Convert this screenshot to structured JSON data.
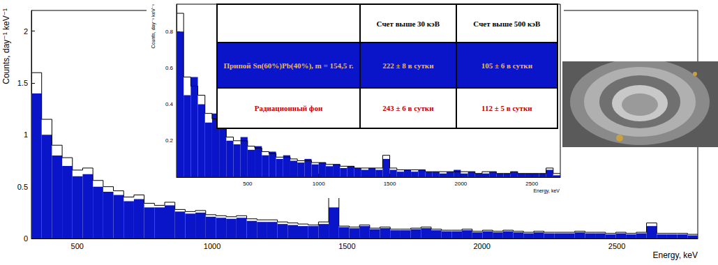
{
  "chart_data": [
    {
      "type": "histogram",
      "xlabel": "Energy, keV",
      "ylabel": "Counts, day⁻¹ keV⁻¹",
      "bins": [
        330,
        368,
        406,
        444,
        482,
        520,
        558,
        596,
        634,
        672,
        710,
        748,
        786,
        824,
        862,
        900,
        938,
        976,
        1014,
        1052,
        1090,
        1128,
        1166,
        1204,
        1242,
        1280,
        1318,
        1356,
        1394,
        1432,
        1470,
        1508,
        1546,
        1584,
        1622,
        1660,
        1698,
        1736,
        1774,
        1812,
        1850,
        1888,
        1926,
        1964,
        2002,
        2040,
        2078,
        2116,
        2154,
        2192,
        2230,
        2268,
        2306,
        2344,
        2382,
        2420,
        2458,
        2496,
        2534,
        2572,
        2610,
        2648,
        2686,
        2724,
        2762,
        2800
      ],
      "series": [
        {
          "name": "Припой Sn(60%)Pb(40%), m = 154,5 г.",
          "type": "bar",
          "color": "#0a14c8",
          "values": [
            1.4,
            1.0,
            0.8,
            0.7,
            0.6,
            0.62,
            0.5,
            0.45,
            0.42,
            0.36,
            0.38,
            0.3,
            0.3,
            0.32,
            0.26,
            0.24,
            0.25,
            0.21,
            0.2,
            0.19,
            0.2,
            0.17,
            0.16,
            0.16,
            0.14,
            0.13,
            0.12,
            0.12,
            0.14,
            0.3,
            0.11,
            0.1,
            0.12,
            0.09,
            0.1,
            0.08,
            0.08,
            0.09,
            0.1,
            0.08,
            0.07,
            0.07,
            0.08,
            0.06,
            0.07,
            0.06,
            0.07,
            0.06,
            0.05,
            0.06,
            0.05,
            0.05,
            0.05,
            0.06,
            0.05,
            0.05,
            0.04,
            0.05,
            0.04,
            0.05,
            0.12,
            0.04,
            0.04,
            0.04,
            0.03
          ]
        },
        {
          "name": "Радиационный фон",
          "type": "line",
          "color": "#000000",
          "values": [
            1.6,
            1.15,
            0.9,
            0.78,
            0.66,
            0.68,
            0.56,
            0.5,
            0.46,
            0.4,
            0.42,
            0.34,
            0.32,
            0.35,
            0.28,
            0.26,
            0.27,
            0.23,
            0.22,
            0.21,
            0.22,
            0.19,
            0.18,
            0.18,
            0.16,
            0.15,
            0.14,
            0.13,
            0.16,
            0.42,
            0.12,
            0.11,
            0.13,
            0.1,
            0.11,
            0.09,
            0.09,
            0.1,
            0.11,
            0.09,
            0.08,
            0.08,
            0.09,
            0.07,
            0.08,
            0.07,
            0.08,
            0.07,
            0.06,
            0.07,
            0.06,
            0.06,
            0.06,
            0.07,
            0.06,
            0.06,
            0.05,
            0.06,
            0.05,
            0.06,
            0.15,
            0.05,
            0.05,
            0.05,
            0.04
          ]
        }
      ],
      "xlim": [
        330,
        2800
      ],
      "xticks": [
        500,
        1000,
        1500,
        2000,
        2500
      ],
      "ylim": [
        0,
        2.2
      ],
      "yticks": [
        0,
        0.5,
        1,
        1.5,
        2
      ],
      "grid": false
    },
    {
      "type": "histogram",
      "xlabel": "Energy, keV",
      "ylabel": "Counts, day⁻¹ keV⁻¹",
      "bins": [
        0,
        50,
        100,
        150,
        200,
        250,
        300,
        350,
        400,
        450,
        500,
        550,
        600,
        650,
        700,
        750,
        800,
        850,
        900,
        950,
        1000,
        1050,
        1100,
        1150,
        1200,
        1250,
        1300,
        1350,
        1400,
        1450,
        1500,
        1550,
        1600,
        1650,
        1700,
        1750,
        1800,
        1850,
        1900,
        1950,
        2000,
        2050,
        2100,
        2150,
        2200,
        2250,
        2300,
        2350,
        2400,
        2450,
        2500,
        2550,
        2600,
        2650,
        2700
      ],
      "series": [
        {
          "name": "Припой Sn(60%)Pb(40%), m = 154,5 г.",
          "type": "bar",
          "color": "#0a14c8",
          "values": [
            0.8,
            0.45,
            0.55,
            0.4,
            0.3,
            0.35,
            0.28,
            0.2,
            0.18,
            0.22,
            0.15,
            0.17,
            0.12,
            0.14,
            0.1,
            0.12,
            0.09,
            0.08,
            0.1,
            0.07,
            0.08,
            0.06,
            0.07,
            0.05,
            0.06,
            0.05,
            0.04,
            0.05,
            0.04,
            0.1,
            0.04,
            0.03,
            0.04,
            0.03,
            0.04,
            0.03,
            0.03,
            0.02,
            0.03,
            0.04,
            0.02,
            0.03,
            0.02,
            0.02,
            0.03,
            0.02,
            0.02,
            0.03,
            0.02,
            0.02,
            0.02,
            0.02,
            0.04,
            0.01
          ]
        },
        {
          "name": "Радиационный фон",
          "type": "line",
          "color": "#000000",
          "values": [
            0.9,
            0.55,
            0.5,
            0.45,
            0.35,
            0.32,
            0.3,
            0.22,
            0.2,
            0.2,
            0.17,
            0.16,
            0.14,
            0.13,
            0.11,
            0.11,
            0.1,
            0.09,
            0.09,
            0.08,
            0.08,
            0.07,
            0.07,
            0.06,
            0.06,
            0.05,
            0.05,
            0.05,
            0.05,
            0.12,
            0.05,
            0.04,
            0.04,
            0.04,
            0.04,
            0.03,
            0.03,
            0.03,
            0.03,
            0.03,
            0.03,
            0.03,
            0.02,
            0.03,
            0.03,
            0.02,
            0.02,
            0.03,
            0.02,
            0.02,
            0.02,
            0.02,
            0.05,
            0.02
          ]
        }
      ],
      "xlim": [
        0,
        2700
      ],
      "xticks": [
        500,
        1000,
        1500,
        2000,
        2500
      ],
      "ylim": [
        0,
        0.95
      ],
      "yticks": [
        0.2,
        0.4,
        0.6,
        0.8
      ],
      "grid": false
    }
  ],
  "table": {
    "columns": [
      "Счет выше 30 кэВ",
      "Счет выше 500 кэВ"
    ],
    "rows": [
      {
        "label": "Припой Sn(60%)Pb(40%), m = 154,5 г.",
        "cells": [
          "222 ± 8 в сутки",
          "105 ± 6 в сутки"
        ]
      },
      {
        "label": "Радиационный фон",
        "cells": [
          "243 ± 6 в сутки",
          "112 ± 5 в сутки"
        ]
      }
    ]
  }
}
